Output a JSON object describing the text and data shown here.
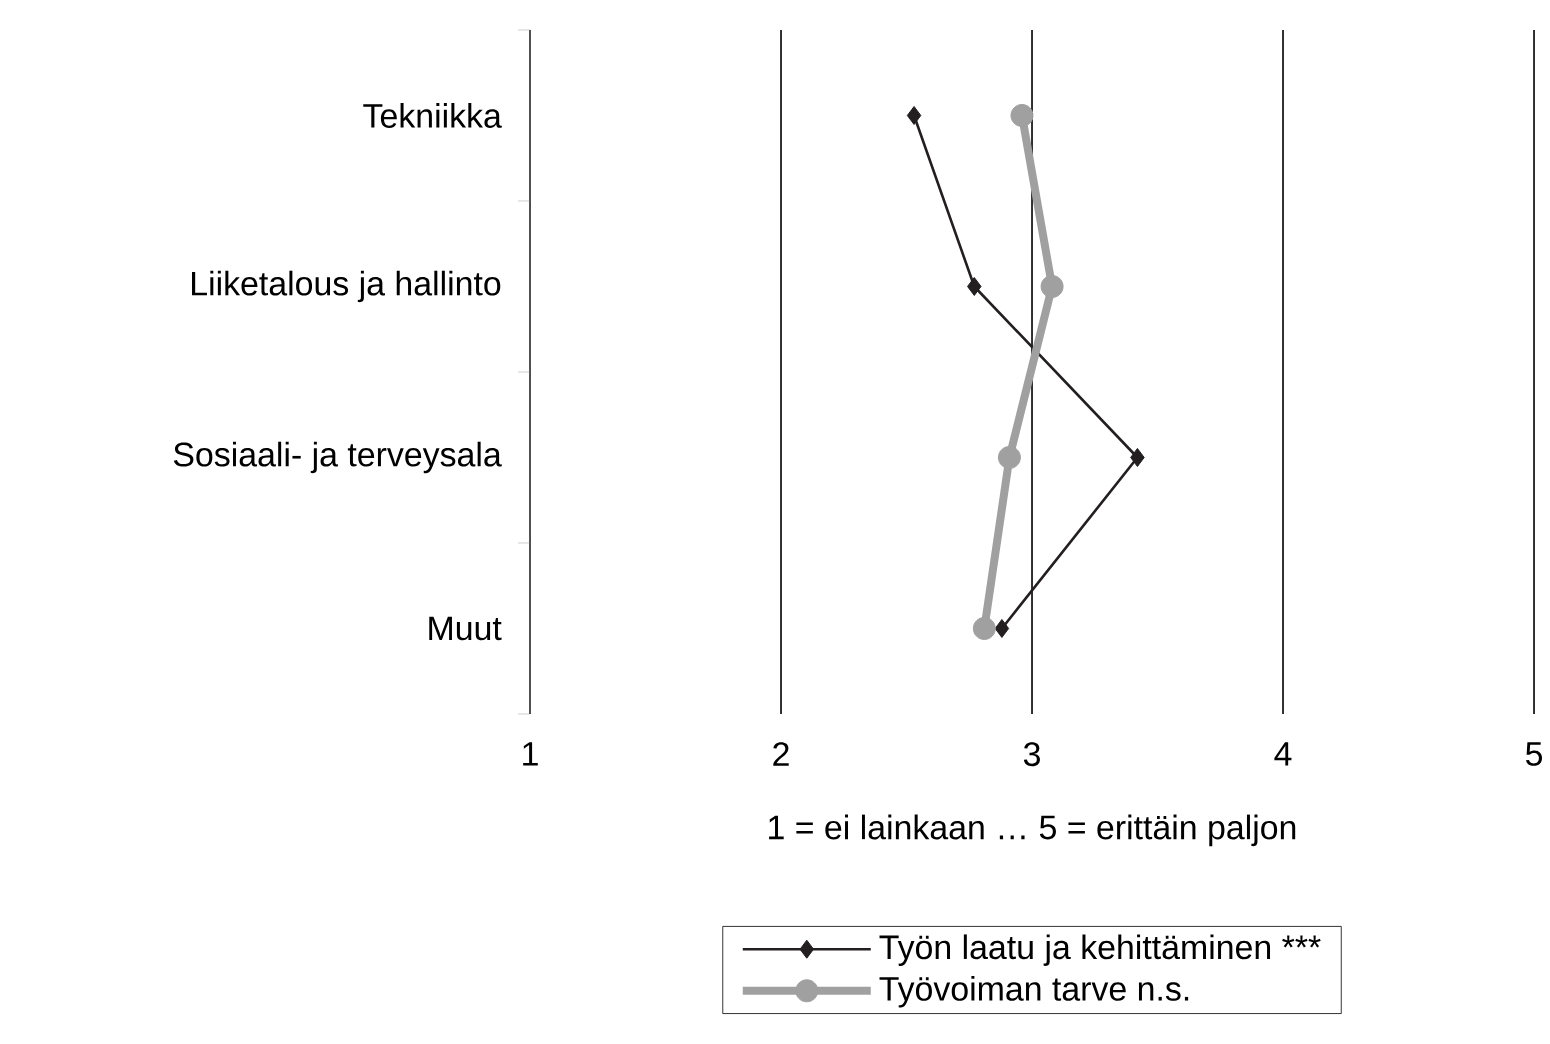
{
  "chart_data": {
    "type": "line",
    "orientation": "horizontal",
    "xlabel": "1 = ei lainkaan … 5 = erittäin paljon",
    "categories": [
      "Tekniikka",
      "Liiketalous ja hallinto",
      "Sosiaali- ja terveysala",
      "Muut"
    ],
    "xlim": [
      1,
      5
    ],
    "xticks": [
      1,
      2,
      3,
      4,
      5
    ],
    "grid": "x",
    "legend": "bottom",
    "series": [
      {
        "name": "Työn laatu ja kehittäminen ***",
        "color": "#231f20",
        "marker": "diamond",
        "values": [
          2.53,
          2.77,
          3.42,
          2.88
        ]
      },
      {
        "name": "Työvoiman tarve n.s.",
        "color": "#a0a0a0",
        "marker": "circle",
        "values": [
          2.96,
          3.08,
          2.91,
          2.81
        ]
      }
    ]
  }
}
